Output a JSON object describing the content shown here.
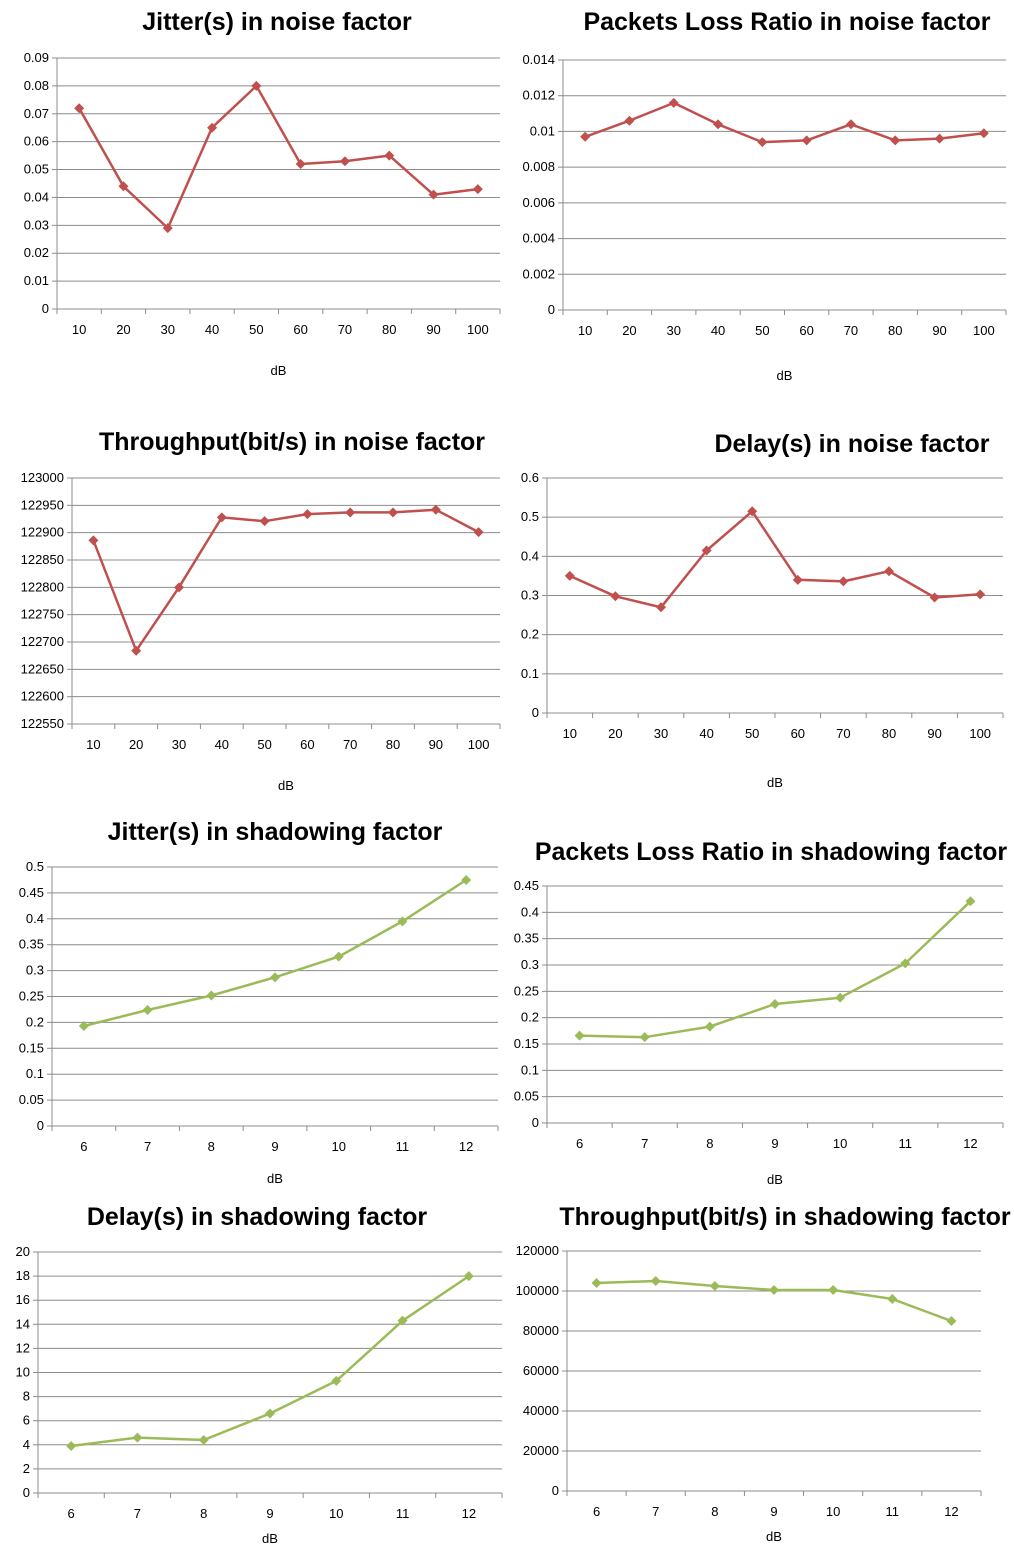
{
  "colors": {
    "noise": "#c0504d",
    "shadowing": "#9bbb59"
  },
  "chart_data": [
    {
      "type": "line",
      "title": "Jitter(s) in noise factor",
      "xlabel": "dB",
      "categories": [
        "10",
        "20",
        "30",
        "40",
        "50",
        "60",
        "70",
        "80",
        "90",
        "100"
      ],
      "values": [
        0.072,
        0.044,
        0.029,
        0.065,
        0.08,
        0.052,
        0.053,
        0.055,
        0.041,
        0.043
      ],
      "ylim": [
        0,
        0.09
      ],
      "yticks": [
        "0",
        "0.01",
        "0.02",
        "0.03",
        "0.04",
        "0.05",
        "0.06",
        "0.07",
        "0.08",
        "0.09"
      ],
      "grid": true,
      "color": "#c0504d"
    },
    {
      "type": "line",
      "title": "Packets Loss Ratio in noise factor",
      "xlabel": "dB",
      "categories": [
        "10",
        "20",
        "30",
        "40",
        "50",
        "60",
        "70",
        "80",
        "90",
        "100"
      ],
      "values": [
        0.0097,
        0.0106,
        0.0116,
        0.0104,
        0.0094,
        0.0095,
        0.0104,
        0.0095,
        0.0096,
        0.0099
      ],
      "ylim": [
        0,
        0.014
      ],
      "yticks": [
        "0",
        "0.002",
        "0.004",
        "0.006",
        "0.008",
        "0.01",
        "0.012",
        "0.014"
      ],
      "grid": true,
      "color": "#c0504d"
    },
    {
      "type": "line",
      "title": "Throughput(bit/s) in noise factor",
      "xlabel": "dB",
      "categories": [
        "10",
        "20",
        "30",
        "40",
        "50",
        "60",
        "70",
        "80",
        "90",
        "100"
      ],
      "values": [
        122886,
        122684,
        122800,
        122928,
        122921,
        122934,
        122937,
        122937,
        122942,
        122901
      ],
      "ylim": [
        122550,
        123000
      ],
      "yticks": [
        "122550",
        "122600",
        "122650",
        "122700",
        "122750",
        "122800",
        "122850",
        "122900",
        "122950",
        "123000"
      ],
      "grid": true,
      "color": "#c0504d"
    },
    {
      "type": "line",
      "title": "Delay(s) in noise factor",
      "xlabel": "dB",
      "categories": [
        "10",
        "20",
        "30",
        "40",
        "50",
        "60",
        "70",
        "80",
        "90",
        "100"
      ],
      "values": [
        0.35,
        0.298,
        0.27,
        0.415,
        0.515,
        0.34,
        0.336,
        0.362,
        0.295,
        0.303
      ],
      "ylim": [
        0,
        0.6
      ],
      "yticks": [
        "0",
        "0.1",
        "0.2",
        "0.3",
        "0.4",
        "0.5",
        "0.6"
      ],
      "grid": true,
      "color": "#c0504d"
    },
    {
      "type": "line",
      "title": "Jitter(s) in shadowing factor",
      "xlabel": "dB",
      "categories": [
        "6",
        "7",
        "8",
        "9",
        "10",
        "11",
        "12"
      ],
      "values": [
        0.193,
        0.224,
        0.252,
        0.287,
        0.327,
        0.395,
        0.475
      ],
      "ylim": [
        0,
        0.5
      ],
      "yticks": [
        "0",
        "0.05",
        "0.1",
        "0.15",
        "0.2",
        "0.25",
        "0.3",
        "0.35",
        "0.4",
        "0.45",
        "0.5"
      ],
      "grid": true,
      "color": "#9bbb59"
    },
    {
      "type": "line",
      "title": "Packets Loss Ratio in shadowing factor",
      "xlabel": "dB",
      "categories": [
        "6",
        "7",
        "8",
        "9",
        "10",
        "11",
        "12"
      ],
      "values": [
        0.166,
        0.163,
        0.183,
        0.226,
        0.238,
        0.303,
        0.421
      ],
      "ylim": [
        0,
        0.45
      ],
      "yticks": [
        "0",
        "0.05",
        "0.1",
        "0.15",
        "0.2",
        "0.25",
        "0.3",
        "0.35",
        "0.4",
        "0.45"
      ],
      "grid": true,
      "color": "#9bbb59"
    },
    {
      "type": "line",
      "title": "Delay(s) in shadowing factor",
      "xlabel": "dB",
      "categories": [
        "6",
        "7",
        "8",
        "9",
        "10",
        "11",
        "12"
      ],
      "values": [
        3.9,
        4.6,
        4.4,
        6.6,
        9.3,
        14.3,
        18.0
      ],
      "ylim": [
        0,
        20
      ],
      "yticks": [
        "0",
        "2",
        "4",
        "6",
        "8",
        "10",
        "12",
        "14",
        "16",
        "18",
        "20"
      ],
      "grid": true,
      "color": "#9bbb59"
    },
    {
      "type": "line",
      "title": "Throughput(bit/s) in shadowing factor",
      "xlabel": "dB",
      "categories": [
        "6",
        "7",
        "8",
        "9",
        "10",
        "11",
        "12"
      ],
      "values": [
        104000,
        105000,
        102500,
        100500,
        100500,
        96000,
        85000
      ],
      "ylim": [
        0,
        120000
      ],
      "yticks": [
        "0",
        "20000",
        "40000",
        "60000",
        "80000",
        "100000",
        "120000"
      ],
      "grid": true,
      "color": "#9bbb59"
    }
  ]
}
